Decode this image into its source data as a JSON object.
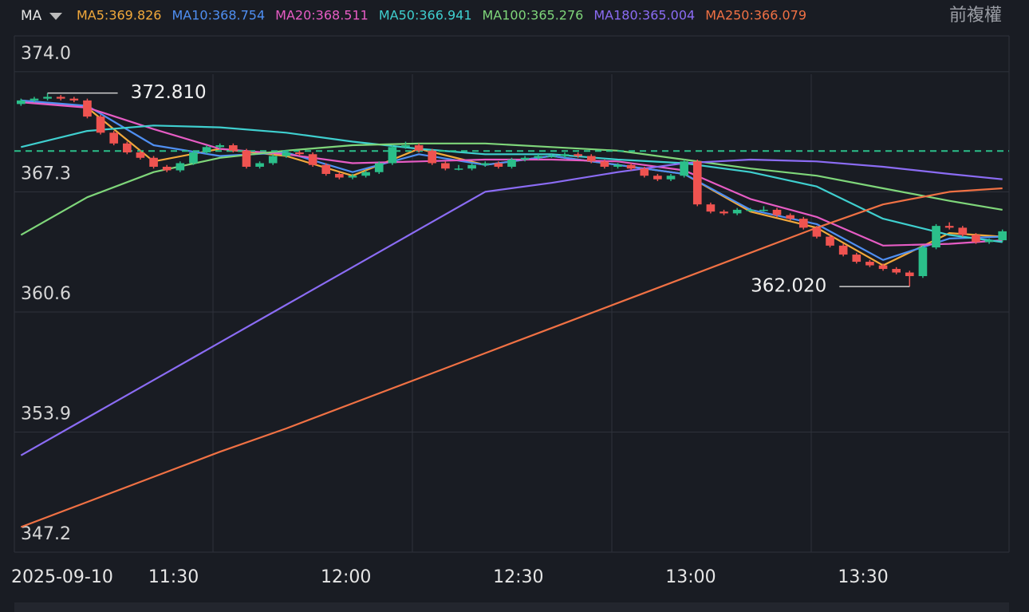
{
  "chart_data": {
    "type": "candlestick",
    "indicator": "MA",
    "adjust_label": "前複權",
    "date_label": "2025-09-10",
    "xlim": [
      0,
      75
    ],
    "xticks": [
      {
        "value": 12,
        "label": "11:30"
      },
      {
        "value": 25,
        "label": "12:00"
      },
      {
        "value": 38,
        "label": "12:30"
      },
      {
        "value": 51,
        "label": "13:00"
      },
      {
        "value": 64,
        "label": "13:30"
      }
    ],
    "ylim": [
      347.2,
      376.0
    ],
    "yticks": [
      {
        "value": 374,
        "label": "374.0"
      },
      367.3,
      360.6,
      353.9,
      347.2
    ],
    "grid": true,
    "up_color": "#2bbf8a",
    "down_color": "#ef5350",
    "last_price": 369.58,
    "last_price_color": "#2bbf8a",
    "annotations": [
      {
        "value": 372.81,
        "label": "372.810",
        "index": 2
      },
      {
        "value": 362.02,
        "label": "362.020",
        "index": 67
      }
    ],
    "candles": [
      [
        372.2,
        372.5,
        372.1,
        372.4
      ],
      [
        372.4,
        372.6,
        372.3,
        372.5
      ],
      [
        372.5,
        372.81,
        372.4,
        372.6
      ],
      [
        372.6,
        372.7,
        372.4,
        372.5
      ],
      [
        372.5,
        372.6,
        372.3,
        372.4
      ],
      [
        372.4,
        372.5,
        371.4,
        371.5
      ],
      [
        371.5,
        371.6,
        370.5,
        370.6
      ],
      [
        370.6,
        370.7,
        369.9,
        370.0
      ],
      [
        370.0,
        370.1,
        369.4,
        369.5
      ],
      [
        369.5,
        369.6,
        369.1,
        369.2
      ],
      [
        369.2,
        369.3,
        368.6,
        368.7
      ],
      [
        368.7,
        368.8,
        368.4,
        368.5
      ],
      [
        368.5,
        369.0,
        368.4,
        368.9
      ],
      [
        368.9,
        369.6,
        368.8,
        369.5
      ],
      [
        369.5,
        369.9,
        369.4,
        369.8
      ],
      [
        369.8,
        370.0,
        369.7,
        369.9
      ],
      [
        369.9,
        370.0,
        369.5,
        369.6
      ],
      [
        369.6,
        369.7,
        368.6,
        368.7
      ],
      [
        368.7,
        369.0,
        368.6,
        368.9
      ],
      [
        368.9,
        369.4,
        368.8,
        369.3
      ],
      [
        369.3,
        369.6,
        369.2,
        369.5
      ],
      [
        369.5,
        369.6,
        369.3,
        369.4
      ],
      [
        369.4,
        369.5,
        368.7,
        368.8
      ],
      [
        368.8,
        368.9,
        368.2,
        368.3
      ],
      [
        368.3,
        368.4,
        368.0,
        368.1
      ],
      [
        368.1,
        368.3,
        368.0,
        368.2
      ],
      [
        368.2,
        368.5,
        368.1,
        368.4
      ],
      [
        368.4,
        369.0,
        368.3,
        368.9
      ],
      [
        368.9,
        369.9,
        368.8,
        369.8
      ],
      [
        369.8,
        370.1,
        369.7,
        369.9
      ],
      [
        369.9,
        370.0,
        369.5,
        369.6
      ],
      [
        369.6,
        369.7,
        368.8,
        368.9
      ],
      [
        368.9,
        369.0,
        368.5,
        368.6
      ],
      [
        368.6,
        368.8,
        368.5,
        368.6
      ],
      [
        368.6,
        368.9,
        368.5,
        368.8
      ],
      [
        368.8,
        369.0,
        368.7,
        368.9
      ],
      [
        368.9,
        369.0,
        368.6,
        368.7
      ],
      [
        368.7,
        369.2,
        368.6,
        369.1
      ],
      [
        369.1,
        369.3,
        369.0,
        369.2
      ],
      [
        369.2,
        369.4,
        369.1,
        369.3
      ],
      [
        369.3,
        369.4,
        369.2,
        369.3
      ],
      [
        369.3,
        369.5,
        369.2,
        369.4
      ],
      [
        369.4,
        369.5,
        369.2,
        369.3
      ],
      [
        369.3,
        369.4,
        368.9,
        369.0
      ],
      [
        369.0,
        369.1,
        368.6,
        368.7
      ],
      [
        368.7,
        368.9,
        368.6,
        368.8
      ],
      [
        368.8,
        368.9,
        368.5,
        368.6
      ],
      [
        368.6,
        368.7,
        368.1,
        368.2
      ],
      [
        368.2,
        368.3,
        367.9,
        368.0
      ],
      [
        368.0,
        368.3,
        367.9,
        368.2
      ],
      [
        368.2,
        369.1,
        368.1,
        369.0
      ],
      [
        369.0,
        369.1,
        366.5,
        366.6
      ],
      [
        366.6,
        366.7,
        366.1,
        366.2
      ],
      [
        366.2,
        366.3,
        366.0,
        366.1
      ],
      [
        366.1,
        366.4,
        366.0,
        366.3
      ],
      [
        366.3,
        366.4,
        366.2,
        366.3
      ],
      [
        366.3,
        366.5,
        366.2,
        366.3
      ],
      [
        366.3,
        366.4,
        365.9,
        366.0
      ],
      [
        366.0,
        366.1,
        365.7,
        365.8
      ],
      [
        365.8,
        365.9,
        365.2,
        365.3
      ],
      [
        365.3,
        365.4,
        364.7,
        364.8
      ],
      [
        364.8,
        364.9,
        364.2,
        364.3
      ],
      [
        364.3,
        364.4,
        363.7,
        363.8
      ],
      [
        363.8,
        363.9,
        363.3,
        363.4
      ],
      [
        363.4,
        363.5,
        363.1,
        363.2
      ],
      [
        363.2,
        363.3,
        362.9,
        363.0
      ],
      [
        363.0,
        363.1,
        362.7,
        362.8
      ],
      [
        362.8,
        362.9,
        362.02,
        362.6
      ],
      [
        362.6,
        364.3,
        362.5,
        364.2
      ],
      [
        364.2,
        365.5,
        364.1,
        365.4
      ],
      [
        365.4,
        365.6,
        365.2,
        365.3
      ],
      [
        365.3,
        365.4,
        364.8,
        364.9
      ],
      [
        364.9,
        365.0,
        364.4,
        364.5
      ],
      [
        364.5,
        364.7,
        364.4,
        364.6
      ],
      [
        364.6,
        365.2,
        364.5,
        365.1
      ]
    ],
    "x": [
      0,
      5,
      10,
      15,
      20,
      25,
      30,
      35,
      40,
      45,
      50,
      55,
      60,
      65,
      70,
      74
    ],
    "series": [
      {
        "name": "MA5:369.826",
        "color": "#f2a93b",
        "values": [
          372.4,
          372.0,
          369.0,
          369.7,
          369.3,
          368.2,
          369.7,
          368.8,
          369.3,
          368.8,
          368.3,
          366.2,
          365.3,
          363.2,
          365.0,
          364.8
        ]
      },
      {
        "name": "MA10:368.754",
        "color": "#4f8ff2",
        "values": [
          372.4,
          372.1,
          369.9,
          369.3,
          369.5,
          368.4,
          369.4,
          368.8,
          369.3,
          368.8,
          368.3,
          366.3,
          365.5,
          363.5,
          364.7,
          364.8
        ]
      },
      {
        "name": "MA20:368.511",
        "color": "#e65cc4",
        "values": [
          372.3,
          372.0,
          370.8,
          369.7,
          369.4,
          368.9,
          369.0,
          369.1,
          369.1,
          369.0,
          368.5,
          366.9,
          365.9,
          364.3,
          364.4,
          364.6
        ]
      },
      {
        "name": "MA50:366.941",
        "color": "#3fcfcf",
        "values": [
          369.8,
          370.7,
          371.0,
          370.9,
          370.6,
          370.1,
          369.7,
          369.4,
          369.4,
          369.1,
          368.9,
          368.4,
          367.6,
          365.8,
          364.9,
          364.5
        ]
      },
      {
        "name": "MA100:365.276",
        "color": "#7fd67a",
        "values": [
          364.9,
          367.0,
          368.4,
          369.2,
          369.6,
          369.9,
          370.0,
          370.0,
          369.8,
          369.6,
          369.1,
          368.6,
          368.2,
          367.5,
          366.8,
          366.3
        ]
      },
      {
        "name": "MA180:365.004",
        "color": "#8b6cf4",
        "values": [
          352.6,
          354.7,
          356.8,
          358.9,
          361.0,
          363.1,
          365.2,
          367.3,
          367.8,
          368.4,
          368.9,
          369.1,
          369.0,
          368.7,
          368.3,
          368.0
        ]
      },
      {
        "name": "MA250:366.079",
        "color": "#f07144",
        "values": [
          348.6,
          350.0,
          351.4,
          352.8,
          354.1,
          355.5,
          356.9,
          358.3,
          359.7,
          361.1,
          362.5,
          363.9,
          365.3,
          366.6,
          367.3,
          367.5
        ]
      }
    ]
  }
}
